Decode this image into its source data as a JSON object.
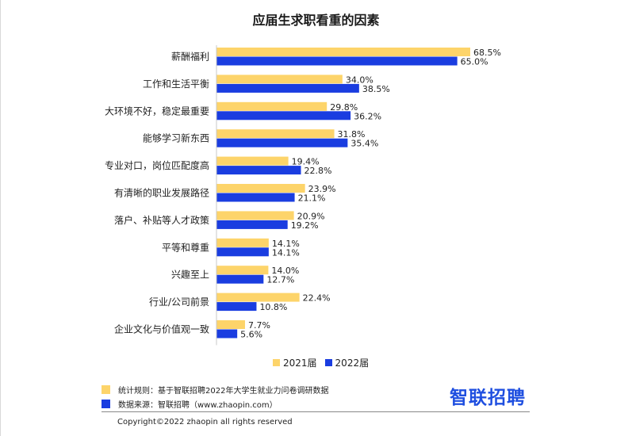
{
  "chart_data": {
    "type": "bar",
    "orientation": "horizontal",
    "title": "应届生求职看重的因素",
    "categories": [
      "薪酬福利",
      "工作和生活平衡",
      "大环境不好，稳定最重要",
      "能够学习新东西",
      "专业对口，岗位匹配度高",
      "有清晰的职业发展路径",
      "落户、补贴等人才政策",
      "平等和尊重",
      "兴趣至上",
      "行业/公司前景",
      "企业文化与价值观一致"
    ],
    "series": [
      {
        "name": "2021届",
        "color": "#fdd46a",
        "values": [
          68.5,
          34.0,
          29.8,
          31.8,
          19.4,
          23.9,
          20.9,
          14.1,
          14.0,
          22.4,
          7.7
        ],
        "labels": [
          "68.5%",
          "34.0%",
          "29.8%",
          "31.8%",
          "19.4%",
          "23.9%",
          "20.9%",
          "14.1%",
          "14.0%",
          "22.4%",
          "7.7%"
        ]
      },
      {
        "name": "2022届",
        "color": "#1a3de0",
        "values": [
          65.0,
          38.5,
          36.2,
          35.4,
          22.8,
          21.1,
          19.2,
          14.1,
          12.7,
          10.8,
          5.6
        ],
        "labels": [
          "65.0%",
          "38.5%",
          "36.2%",
          "35.4%",
          "22.8%",
          "21.1%",
          "19.2%",
          "14.1%",
          "12.7%",
          "10.8%",
          "5.6%"
        ]
      }
    ],
    "legend_position": "bottom",
    "grid": false
  },
  "footnotes": {
    "rule": "统计规则：基于智联招聘2022年大学生就业力问卷调研数据",
    "rule_color": "#fdd46a",
    "source": "数据来源：智联招聘（www.zhaopin.com）",
    "source_color": "#1a3de0"
  },
  "brand": {
    "logo_text": "智联招聘",
    "color": "#1f4fe0"
  },
  "copyright": "Copyright©2022 zhaopin all rights reserved"
}
